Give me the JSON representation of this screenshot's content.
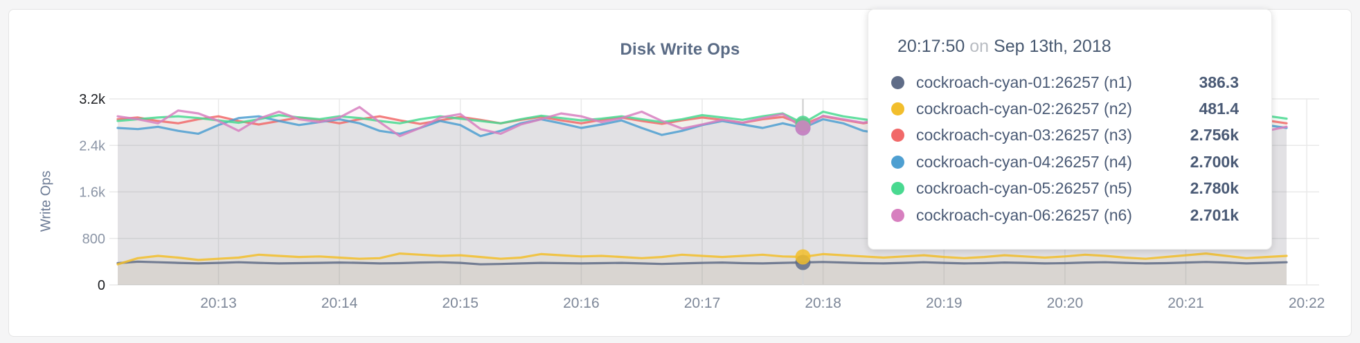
{
  "page": {
    "background": "#f5f5f6"
  },
  "card": {
    "background": "#ffffff",
    "border_color": "#e4e4e4"
  },
  "chart": {
    "title": "Disk Write Ops",
    "ylabel": "Write Ops"
  },
  "chart_data": {
    "type": "line",
    "title": "Disk Write Ops",
    "xlabel": "",
    "ylabel": "Write Ops",
    "ylim": [
      0,
      3200
    ],
    "grid": true,
    "legend_position": "tooltip",
    "x_start_label": "20:12:10",
    "x_interval_seconds": 10,
    "hover_index": 34,
    "y_ticks": [
      {
        "value": 0,
        "label": "0"
      },
      {
        "value": 800,
        "label": "800"
      },
      {
        "value": 1600,
        "label": "1.6k"
      },
      {
        "value": 2400,
        "label": "2.4k"
      },
      {
        "value": 3200,
        "label": "3.2k"
      }
    ],
    "x_ticks": [
      {
        "index": 5,
        "label": "20:13"
      },
      {
        "index": 11,
        "label": "20:14"
      },
      {
        "index": 17,
        "label": "20:15"
      },
      {
        "index": 23,
        "label": "20:16"
      },
      {
        "index": 29,
        "label": "20:17"
      },
      {
        "index": 35,
        "label": "20:18"
      },
      {
        "index": 41,
        "label": "20:19"
      },
      {
        "index": 47,
        "label": "20:20"
      },
      {
        "index": 53,
        "label": "20:21"
      },
      {
        "index": 59,
        "label": "20:22"
      }
    ],
    "series": [
      {
        "name": "cockroach-cyan-01:26257 (n1)",
        "color": "#5F6C87",
        "values": [
          375,
          400,
          390,
          380,
          370,
          380,
          390,
          380,
          370,
          375,
          380,
          385,
          380,
          370,
          375,
          385,
          390,
          380,
          355,
          360,
          370,
          380,
          375,
          370,
          375,
          380,
          370,
          360,
          370,
          380,
          385,
          375,
          370,
          380,
          386.3,
          395,
          385,
          375,
          370,
          380,
          390,
          380,
          370,
          375,
          385,
          380,
          370,
          375,
          385,
          390,
          380,
          370,
          375,
          385,
          395,
          385,
          370,
          380,
          390
        ]
      },
      {
        "name": "cockroach-cyan-02:26257 (n2)",
        "color": "#F2BE2C",
        "values": [
          355,
          460,
          500,
          470,
          430,
          450,
          470,
          520,
          500,
          480,
          490,
          470,
          450,
          460,
          540,
          520,
          500,
          510,
          480,
          450,
          470,
          530,
          510,
          490,
          500,
          480,
          460,
          480,
          520,
          500,
          480,
          500,
          520,
          490,
          481.4,
          530,
          510,
          490,
          470,
          490,
          510,
          480,
          460,
          480,
          510,
          490,
          470,
          490,
          520,
          500,
          470,
          450,
          480,
          510,
          540,
          500,
          460,
          480,
          500
        ]
      },
      {
        "name": "cockroach-cyan-03:26257 (n3)",
        "color": "#F16969",
        "values": [
          2850,
          2880,
          2820,
          2780,
          2850,
          2900,
          2820,
          2760,
          2820,
          2880,
          2840,
          2780,
          2850,
          2900,
          2830,
          2770,
          2830,
          2890,
          2840,
          2780,
          2840,
          2890,
          2830,
          2780,
          2840,
          2880,
          2820,
          2770,
          2830,
          2880,
          2840,
          2790,
          2850,
          2890,
          2756,
          2900,
          2840,
          2780,
          2840,
          2800,
          2850,
          2800,
          2760,
          2820,
          2870,
          2820,
          2770,
          2830,
          2880,
          2840,
          2790,
          2840,
          2880,
          2830,
          2780,
          2840,
          2890,
          2830,
          2780
        ]
      },
      {
        "name": "cockroach-cyan-04:26257 (n4)",
        "color": "#4E9FD1",
        "values": [
          2700,
          2680,
          2720,
          2650,
          2600,
          2750,
          2870,
          2900,
          2820,
          2750,
          2800,
          2850,
          2780,
          2650,
          2600,
          2700,
          2820,
          2750,
          2560,
          2650,
          2780,
          2850,
          2780,
          2700,
          2760,
          2830,
          2700,
          2580,
          2650,
          2750,
          2820,
          2760,
          2700,
          2780,
          2700,
          2850,
          2780,
          2650,
          2600,
          2700,
          2780,
          2850,
          2750,
          2680,
          2720,
          2780,
          2700,
          2650,
          2750,
          2850,
          2780,
          2700,
          2650,
          2750,
          2820,
          2760,
          2680,
          2750,
          2700
        ]
      },
      {
        "name": "cockroach-cyan-05:26257 (n5)",
        "color": "#49D990",
        "values": [
          2820,
          2850,
          2880,
          2900,
          2870,
          2830,
          2790,
          2850,
          2920,
          2880,
          2850,
          2900,
          2870,
          2820,
          2780,
          2850,
          2900,
          2860,
          2820,
          2780,
          2850,
          2910,
          2870,
          2830,
          2860,
          2900,
          2850,
          2800,
          2850,
          2920,
          2880,
          2840,
          2900,
          2950,
          2780,
          2980,
          2900,
          2850,
          2800,
          2840,
          2880,
          2830,
          2790,
          2850,
          2900,
          2860,
          2810,
          2870,
          2930,
          2880,
          2840,
          2790,
          2850,
          2900,
          2860,
          2820,
          2870,
          2910,
          2860
        ]
      },
      {
        "name": "cockroach-cyan-06:26257 (n6)",
        "color": "#D77FBF",
        "values": [
          2900,
          2850,
          2780,
          3000,
          2950,
          2820,
          2650,
          2860,
          2980,
          2850,
          2800,
          2880,
          3060,
          2800,
          2560,
          2700,
          2880,
          2940,
          2680,
          2600,
          2760,
          2850,
          2950,
          2900,
          2800,
          2870,
          2980,
          2820,
          2690,
          2760,
          2840,
          2790,
          2870,
          2940,
          2701,
          2910,
          2850,
          2790,
          2860,
          2750,
          2700,
          2820,
          2900,
          2850,
          2760,
          2660,
          2850,
          2980,
          3100,
          2950,
          2820,
          2760,
          2700,
          2850,
          2920,
          3080,
          2950,
          2650,
          2720
        ]
      }
    ]
  },
  "tooltip": {
    "time": "20:17:50",
    "connector": "on",
    "date": "Sep 13th, 2018",
    "rows": [
      {
        "label": "cockroach-cyan-01:26257 (n1)",
        "value": "386.3",
        "color": "#5F6C87"
      },
      {
        "label": "cockroach-cyan-02:26257 (n2)",
        "value": "481.4",
        "color": "#F2BE2C"
      },
      {
        "label": "cockroach-cyan-03:26257 (n3)",
        "value": "2.756k",
        "color": "#F16969"
      },
      {
        "label": "cockroach-cyan-04:26257 (n4)",
        "value": "2.700k",
        "color": "#4E9FD1"
      },
      {
        "label": "cockroach-cyan-05:26257 (n5)",
        "value": "2.780k",
        "color": "#49D990"
      },
      {
        "label": "cockroach-cyan-06:26257 (n6)",
        "value": "2.701k",
        "color": "#D77FBF"
      }
    ]
  }
}
